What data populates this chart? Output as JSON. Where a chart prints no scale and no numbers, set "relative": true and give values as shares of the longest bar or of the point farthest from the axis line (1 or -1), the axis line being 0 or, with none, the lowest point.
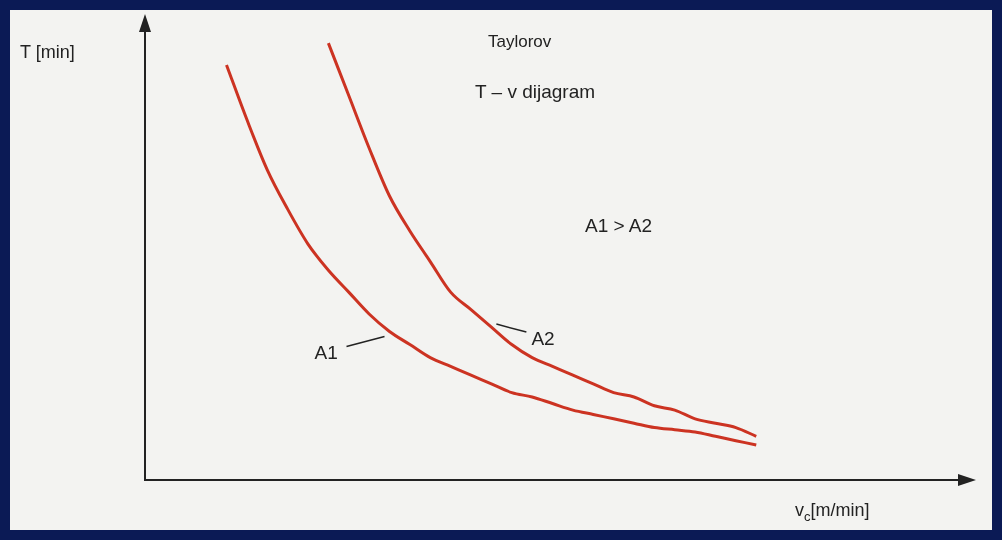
{
  "chart_data": {
    "type": "line",
    "title": "Taylorov",
    "subtitle": "T – v dijagram",
    "xlabel": "v$_{c}$[m/min]",
    "ylabel": "T [min]",
    "relative": true,
    "grid": false,
    "legend": false,
    "marker": "none",
    "annotations": [
      "A1 > A2"
    ],
    "categories": [
      null,
      null,
      null,
      null,
      null,
      null,
      null,
      null,
      null,
      null,
      null,
      null,
      null,
      null,
      null,
      null,
      null,
      null,
      null,
      null,
      null,
      null,
      null,
      null,
      null,
      null,
      null,
      null,
      null,
      null,
      null,
      null,
      null,
      null,
      null,
      null,
      null,
      null,
      null,
      null,
      null
    ],
    "series": [
      {
        "name": "A1",
        "color": "#cc3322",
        "values": [
          null,
          null,
          null,
          null,
          0.95,
          0.825,
          0.71,
          0.62,
          0.54,
          0.48,
          0.43,
          0.38,
          0.34,
          0.31,
          0.28,
          0.26,
          0.24,
          0.22,
          0.2,
          0.19,
          0.175,
          0.16,
          0.15,
          0.14,
          0.13,
          0.12,
          0.115,
          0.11,
          0.1,
          0.09,
          0.08,
          null,
          null,
          null,
          null,
          null,
          null,
          null,
          null,
          null,
          null
        ]
      },
      {
        "name": "A2",
        "color": "#cc3322",
        "values": [
          null,
          null,
          null,
          null,
          null,
          null,
          null,
          null,
          null,
          1.0,
          0.88,
          0.76,
          0.65,
          0.57,
          0.5,
          0.43,
          0.39,
          0.35,
          0.31,
          0.28,
          0.26,
          0.24,
          0.22,
          0.2,
          0.19,
          0.17,
          0.16,
          0.14,
          0.13,
          0.12,
          0.1,
          null,
          null,
          null,
          null,
          null,
          null,
          null,
          null,
          null,
          null
        ]
      }
    ]
  }
}
